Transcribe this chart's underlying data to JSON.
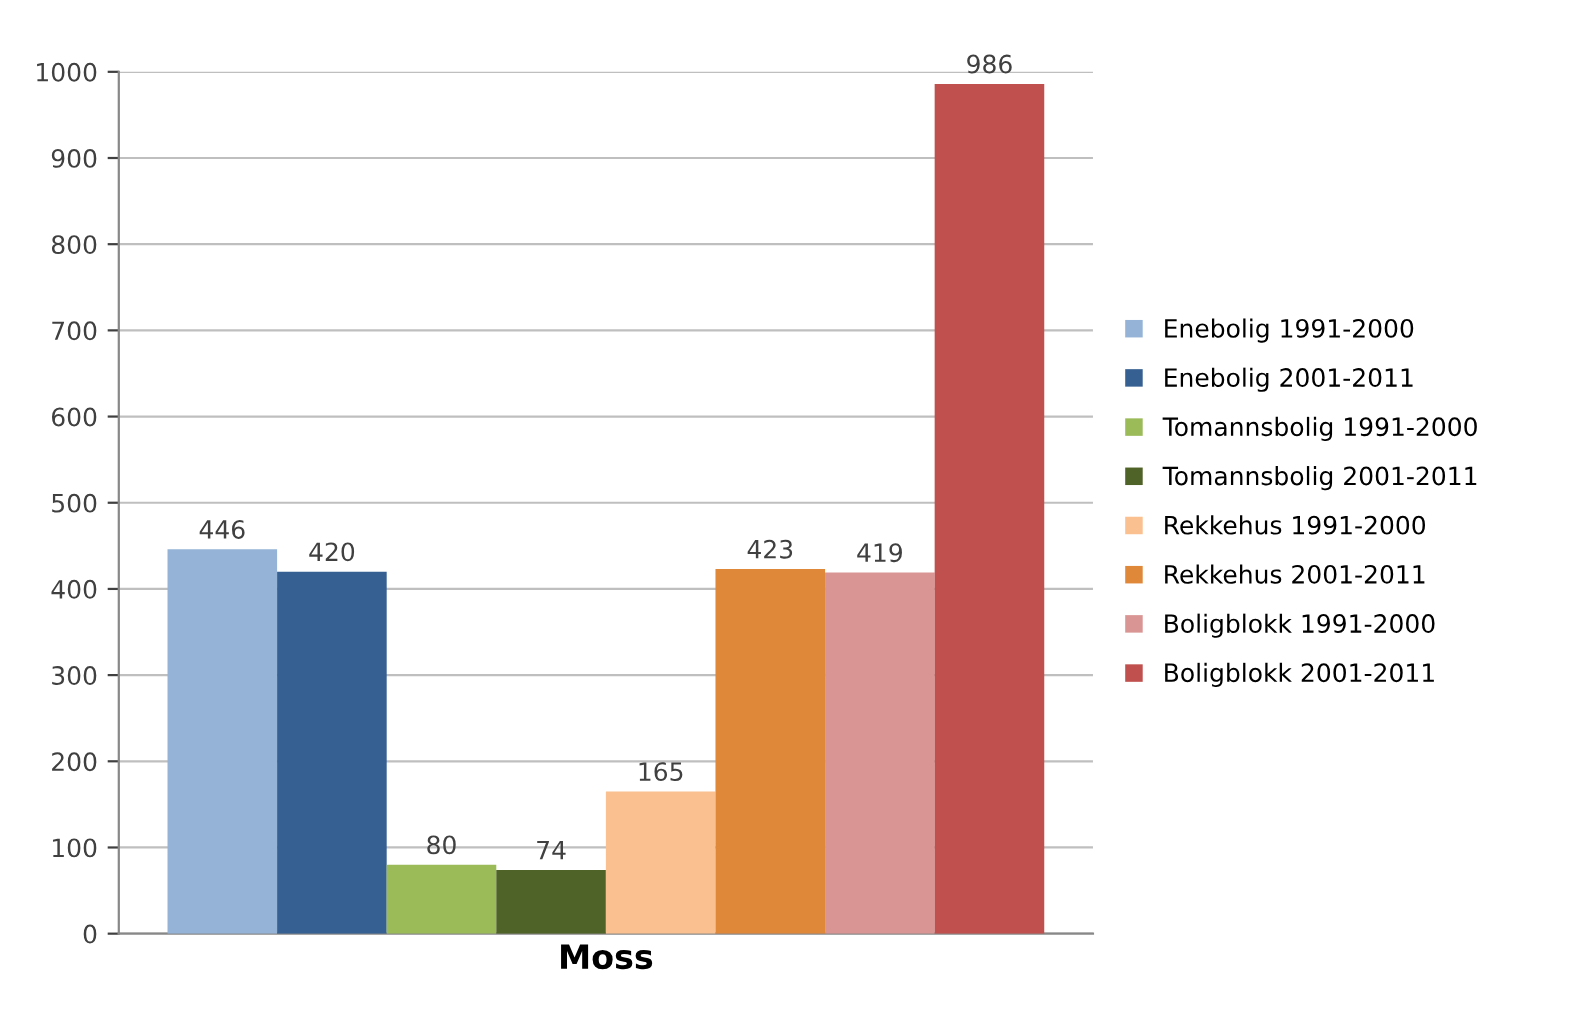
{
  "chart_data": {
    "type": "bar",
    "categories": [
      "Moss"
    ],
    "series": [
      {
        "name": "Enebolig 1991-2000",
        "color": "#95b3d7",
        "values": [
          446
        ]
      },
      {
        "name": "Enebolig 2001-2011",
        "color": "#376092",
        "values": [
          420
        ]
      },
      {
        "name": "Tomannsbolig 1991-2000",
        "color": "#9bbb59",
        "values": [
          80
        ]
      },
      {
        "name": "Tomannsbolig 2001-2011",
        "color": "#4f6228",
        "values": [
          74
        ]
      },
      {
        "name": "Rekkehus 1991-2000",
        "color": "#fac090",
        "values": [
          165
        ]
      },
      {
        "name": "Rekkehus 2001-2011",
        "color": "#e0883a",
        "values": [
          423
        ]
      },
      {
        "name": "Boligblokk 1991-2000",
        "color": "#d99594",
        "values": [
          419
        ]
      },
      {
        "name": "Boligblokk 2001-2011",
        "color": "#c0504d",
        "values": [
          986
        ]
      }
    ],
    "ylim": [
      0,
      1000
    ],
    "yticks": [
      0,
      100,
      200,
      300,
      400,
      500,
      600,
      700,
      800,
      900,
      1000
    ],
    "grid": "y",
    "legend": "right",
    "data_labels": true
  }
}
